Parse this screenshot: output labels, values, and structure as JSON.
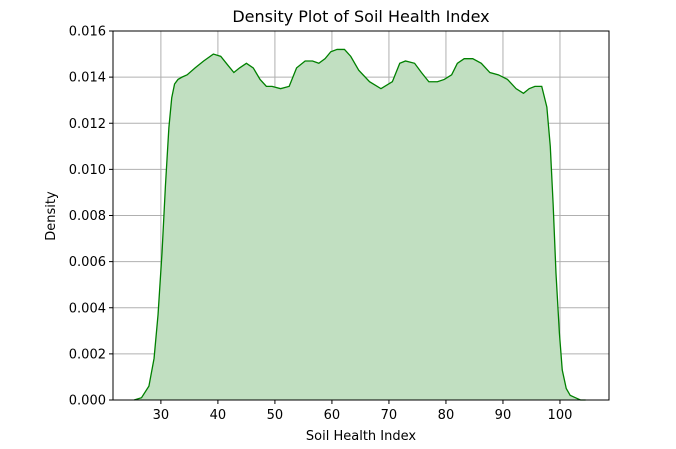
{
  "chart_data": {
    "type": "area",
    "title": "Density Plot of Soil Health Index",
    "xlabel": "Soil Health Index",
    "ylabel": "Density",
    "xlim": [
      21.6,
      108.6
    ],
    "ylim": [
      0,
      0.016
    ],
    "xticks": [
      30,
      40,
      50,
      60,
      70,
      80,
      90,
      100
    ],
    "yticks": [
      0,
      0.002,
      0.004,
      0.006,
      0.008,
      0.01,
      0.012,
      0.014,
      0.016
    ],
    "xtick_labels": [
      "30",
      "40",
      "50",
      "60",
      "70",
      "80",
      "90",
      "100"
    ],
    "ytick_labels": [
      "0.000",
      "0.002",
      "0.004",
      "0.006",
      "0.008",
      "0.010",
      "0.012",
      "0.014",
      "0.016"
    ],
    "grid": true,
    "legend": false,
    "colors": {
      "line": "#008000",
      "fill": "#c1dfc1",
      "grid": "#b0b0b0"
    },
    "series": [
      {
        "x": [
          25.3,
          26.6,
          27.9,
          28.8,
          29.5,
          30.2,
          30.8,
          31.4,
          31.9,
          32.4,
          33.0,
          33.7,
          34.6,
          36.0,
          37.5,
          39.2,
          40.5,
          41.8,
          42.8,
          43.8,
          45.0,
          46.2,
          47.4,
          48.5,
          49.5,
          51.0,
          52.5,
          53.8,
          55.3,
          56.6,
          57.7,
          58.8,
          59.8,
          60.9,
          62.2,
          63.3,
          64.7,
          66.6,
          68.6,
          70.6,
          71.9,
          72.9,
          74.5,
          75.7,
          77.0,
          78.5,
          79.7,
          81.0,
          82.0,
          83.2,
          84.7,
          86.2,
          87.7,
          89.2,
          90.8,
          92.3,
          93.6,
          94.6,
          95.6,
          96.8,
          97.7,
          98.3,
          98.8,
          99.3,
          99.9,
          100.4,
          101.1,
          101.8,
          102.7,
          103.6,
          104.5
        ],
        "values": [
          0.0,
          0.0001,
          0.0006,
          0.0018,
          0.0037,
          0.0064,
          0.0093,
          0.0118,
          0.0131,
          0.0137,
          0.0139,
          0.014,
          0.0141,
          0.0144,
          0.0147,
          0.015,
          0.0149,
          0.0145,
          0.0142,
          0.0144,
          0.0146,
          0.0144,
          0.0139,
          0.0136,
          0.0136,
          0.0135,
          0.0136,
          0.0144,
          0.0147,
          0.0147,
          0.0146,
          0.0148,
          0.0151,
          0.0152,
          0.0152,
          0.0149,
          0.0143,
          0.0138,
          0.0135,
          0.0138,
          0.0146,
          0.0147,
          0.0146,
          0.0142,
          0.0138,
          0.0138,
          0.0139,
          0.0141,
          0.0146,
          0.0148,
          0.0148,
          0.0146,
          0.0142,
          0.0141,
          0.0139,
          0.0135,
          0.0133,
          0.0135,
          0.0136,
          0.0136,
          0.0127,
          0.011,
          0.0085,
          0.0055,
          0.0029,
          0.0013,
          0.0005,
          0.0002,
          0.0001,
          0.0,
          0.0
        ]
      }
    ]
  }
}
